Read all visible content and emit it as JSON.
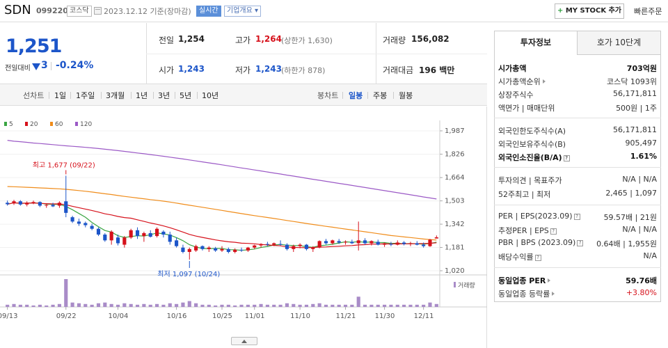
{
  "header": {
    "name": "SDN",
    "code": "099220",
    "market": "코스닥",
    "date": "2023.12.12 기준(장마감)",
    "realtime": "실시간",
    "company_info": "기업개요 ▾",
    "mystock": "MY STOCK 추가",
    "quick_order": "빠른주문"
  },
  "summary": {
    "price": "1,251",
    "change_label": "전일대비",
    "change": "3",
    "change_pct": "-0.24%",
    "prev_label": "전일",
    "prev": "1,254",
    "high_label": "고가",
    "high": "1,264",
    "high_limit": "(상한가 1,630)",
    "volume_label": "거래량",
    "volume": "156,082",
    "open_label": "시가",
    "open": "1,243",
    "low_label": "저가",
    "low": "1,243",
    "low_limit": "(하한가 878)",
    "amount_label": "거래대금",
    "amount": "196 백만"
  },
  "controls": {
    "line_label": "선차트",
    "periods": [
      "1일",
      "1주일",
      "3개월",
      "1년",
      "3년",
      "5년",
      "10년"
    ],
    "candle_label": "봉차트",
    "candle_periods": [
      "일봉",
      "주봉",
      "월봉"
    ],
    "candle_active": "일봉"
  },
  "chart_data": {
    "type": "candlestick",
    "legend": [
      {
        "name": "5",
        "color": "#3aa542"
      },
      {
        "name": "20",
        "color": "#d6111b"
      },
      {
        "name": "60",
        "color": "#f08c1a"
      },
      {
        "name": "120",
        "color": "#9b59c6"
      }
    ],
    "y_ticks": [
      1987,
      1826,
      1664,
      1503,
      1342,
      1181,
      1020
    ],
    "ylim": [
      1020,
      1987
    ],
    "x_ticks": [
      "09/13",
      "09/22",
      "10/04",
      "10/16",
      "10/25",
      "11/01",
      "11/10",
      "11/21",
      "11/30",
      "12/11"
    ],
    "high_note": "최고 1,677 (09/22)",
    "low_note": "최저 1,097 (10/24)",
    "volume_label": "거래량",
    "candles": [
      [
        1490,
        1505,
        1470,
        1480
      ],
      [
        1485,
        1510,
        1475,
        1500
      ],
      [
        1500,
        1508,
        1470,
        1478
      ],
      [
        1478,
        1500,
        1465,
        1490
      ],
      [
        1490,
        1505,
        1480,
        1495
      ],
      [
        1495,
        1500,
        1460,
        1470
      ],
      [
        1470,
        1480,
        1455,
        1475
      ],
      [
        1475,
        1490,
        1460,
        1465
      ],
      [
        1470,
        1500,
        1455,
        1490
      ],
      [
        1500,
        1677,
        1390,
        1420
      ],
      [
        1390,
        1400,
        1350,
        1360
      ],
      [
        1360,
        1380,
        1330,
        1345
      ],
      [
        1350,
        1360,
        1320,
        1335
      ],
      [
        1330,
        1345,
        1300,
        1310
      ],
      [
        1310,
        1320,
        1260,
        1270
      ],
      [
        1270,
        1280,
        1220,
        1230
      ],
      [
        1230,
        1300,
        1200,
        1290
      ],
      [
        1250,
        1270,
        1195,
        1210
      ],
      [
        1200,
        1260,
        1180,
        1250
      ],
      [
        1250,
        1310,
        1240,
        1300
      ],
      [
        1300,
        1320,
        1240,
        1260
      ],
      [
        1260,
        1290,
        1220,
        1280
      ],
      [
        1280,
        1300,
        1250,
        1255
      ],
      [
        1260,
        1320,
        1250,
        1310
      ],
      [
        1290,
        1300,
        1250,
        1270
      ],
      [
        1270,
        1290,
        1200,
        1220
      ],
      [
        1230,
        1250,
        1180,
        1190
      ],
      [
        1180,
        1200,
        1140,
        1150
      ],
      [
        1150,
        1180,
        1097,
        1170
      ],
      [
        1160,
        1200,
        1150,
        1190
      ],
      [
        1190,
        1195,
        1160,
        1170
      ],
      [
        1170,
        1190,
        1150,
        1180
      ],
      [
        1175,
        1185,
        1150,
        1160
      ],
      [
        1160,
        1190,
        1150,
        1170
      ],
      [
        1170,
        1180,
        1140,
        1150
      ],
      [
        1150,
        1175,
        1140,
        1165
      ],
      [
        1165,
        1180,
        1150,
        1160
      ],
      [
        1160,
        1185,
        1150,
        1180
      ],
      [
        1180,
        1200,
        1170,
        1195
      ],
      [
        1195,
        1210,
        1180,
        1205
      ],
      [
        1205,
        1220,
        1190,
        1200
      ],
      [
        1200,
        1215,
        1190,
        1210
      ],
      [
        1205,
        1230,
        1195,
        1200
      ],
      [
        1200,
        1210,
        1160,
        1170
      ],
      [
        1170,
        1200,
        1150,
        1190
      ],
      [
        1190,
        1210,
        1175,
        1200
      ],
      [
        1200,
        1205,
        1160,
        1170
      ],
      [
        1170,
        1190,
        1150,
        1180
      ],
      [
        1180,
        1230,
        1175,
        1225
      ],
      [
        1225,
        1240,
        1200,
        1210
      ],
      [
        1210,
        1235,
        1200,
        1230
      ],
      [
        1225,
        1240,
        1205,
        1215
      ],
      [
        1215,
        1230,
        1200,
        1220
      ],
      [
        1220,
        1235,
        1205,
        1210
      ],
      [
        1210,
        1360,
        1160,
        1230
      ],
      [
        1230,
        1245,
        1200,
        1210
      ],
      [
        1210,
        1230,
        1195,
        1225
      ],
      [
        1220,
        1235,
        1195,
        1200
      ],
      [
        1200,
        1215,
        1185,
        1210
      ],
      [
        1205,
        1220,
        1190,
        1200
      ],
      [
        1200,
        1230,
        1195,
        1215
      ],
      [
        1215,
        1225,
        1195,
        1205
      ],
      [
        1205,
        1220,
        1190,
        1210
      ],
      [
        1210,
        1225,
        1195,
        1200
      ],
      [
        1200,
        1215,
        1180,
        1190
      ],
      [
        1190,
        1240,
        1185,
        1235
      ],
      [
        1243,
        1264,
        1243,
        1251
      ]
    ],
    "volumes": [
      3,
      4,
      3,
      3,
      2,
      3,
      2,
      3,
      4,
      38,
      6,
      5,
      4,
      3,
      5,
      6,
      4,
      3,
      5,
      4,
      3,
      4,
      3,
      4,
      3,
      5,
      4,
      6,
      8,
      5,
      3,
      3,
      2,
      3,
      3,
      2,
      3,
      3,
      3,
      4,
      3,
      3,
      3,
      5,
      4,
      3,
      3,
      4,
      5,
      3,
      3,
      3,
      3,
      3,
      14,
      3,
      3,
      3,
      3,
      3,
      3,
      3,
      3,
      3,
      3,
      6,
      4
    ]
  },
  "rpanel": {
    "tab_invest": "투자정보",
    "tab_ask": "호가 10단계",
    "market_cap_label": "시가총액",
    "market_cap": "703억원",
    "cap_rank_label": "시가총액순위",
    "cap_rank": "코스닥 1093위",
    "shares_label": "상장주식수",
    "shares": "56,171,811",
    "par_label": "액면가 | 매매단위",
    "par": "500원 | 1주",
    "foreign_limit_label": "외국인한도주식수(A)",
    "foreign_limit": "56,171,811",
    "foreign_hold_label": "외국인보유주식수(B)",
    "foreign_hold": "905,497",
    "foreign_rate_label": "외국인소진율(B/A)",
    "foreign_rate": "1.61%",
    "opinion_label": "투자의견 | 목표주가",
    "opinion": "N/A | N/A",
    "week52_label": "52주최고 | 최저",
    "week52": "2,465 | 1,097",
    "per_label": "PER | EPS(2023.09)",
    "per": "59.57배 | 21원",
    "est_per_label": "추정PER | EPS",
    "est_per": "N/A | N/A",
    "pbr_label": "PBR | BPS (2023.09)",
    "pbr": "0.64배 | 1,955원",
    "div_label": "배당수익률",
    "div": "N/A",
    "ind_per_label": "동일업종 PER",
    "ind_per": "59.76배",
    "ind_rate_label": "동일업종 등락률",
    "ind_rate": "+3.80%"
  }
}
